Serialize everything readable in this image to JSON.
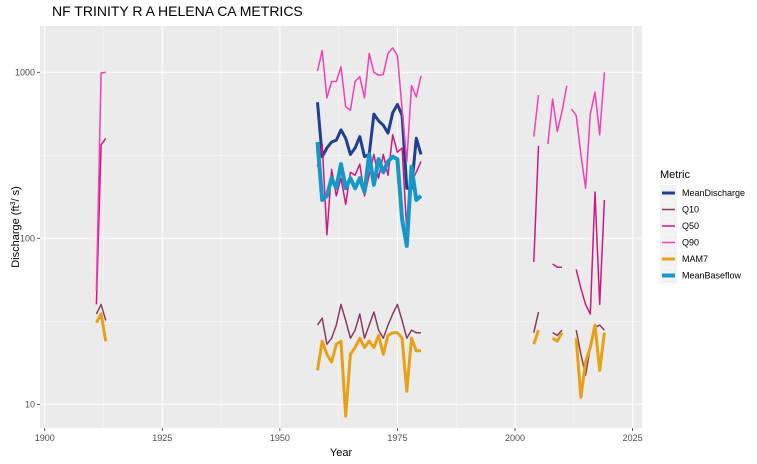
{
  "chart_data": {
    "type": "line",
    "title": "NF TRINITY R A HELENA CA  METRICS",
    "xlabel": "Year",
    "ylabel": "Discharge (ft",
    "ylabel_superscript": "3",
    "ylabel_suffix": "/ s)",
    "xlim": [
      1899,
      2027
    ],
    "ylim": [
      7.2,
      1900
    ],
    "y_scale": "log",
    "x_ticks": [
      1900,
      1925,
      1950,
      1975,
      2000,
      2025
    ],
    "x_minor_ticks": [
      1912.5,
      1937.5,
      1962.5,
      1987.5,
      2012.5
    ],
    "y_ticks": [
      10,
      100,
      1000
    ],
    "grid": true,
    "legend_title": "Metric",
    "legend_position": "right",
    "series": [
      {
        "name": "MeanDischarge",
        "color": "#1f3f8f",
        "width": 3,
        "segments": [
          {
            "x": [
              1958,
              1959,
              1960,
              1961,
              1962,
              1963,
              1964,
              1965,
              1966,
              1967,
              1968,
              1969,
              1970,
              1971,
              1972,
              1973,
              1974,
              1975,
              1976,
              1977,
              1978,
              1979,
              1980
            ],
            "y": [
              660,
              310,
              350,
              380,
              390,
              450,
              400,
              320,
              350,
              410,
              310,
              320,
              560,
              510,
              480,
              430,
              570,
              640,
              550,
              200,
              200,
              400,
              320
            ]
          }
        ]
      },
      {
        "name": "Q10",
        "color": "#8b3a62",
        "width": 1.5,
        "segments": [
          {
            "x": [
              1911,
              1912,
              1913
            ],
            "y": [
              35,
              40,
              32
            ]
          },
          {
            "x": [
              1958,
              1959,
              1960,
              1961,
              1962,
              1963,
              1964,
              1965,
              1966,
              1967,
              1968,
              1969,
              1970,
              1971,
              1972,
              1973,
              1974,
              1975,
              1976,
              1977,
              1978,
              1979,
              1980
            ],
            "y": [
              30,
              33,
              23,
              25,
              30,
              40,
              32,
              25,
              28,
              35,
              25,
              30,
              36,
              28,
              25,
              30,
              35,
              40,
              32,
              25,
              28,
              27,
              27
            ]
          },
          {
            "x": [
              2004,
              2005
            ],
            "y": [
              27,
              36
            ]
          },
          {
            "x": [
              2008,
              2009,
              2010
            ],
            "y": [
              27,
              26,
              28
            ]
          },
          {
            "x": [
              2013,
              2014,
              2015,
              2016,
              2017,
              2018,
              2019
            ],
            "y": [
              28,
              20,
              15,
              22,
              29,
              30,
              28
            ]
          }
        ]
      },
      {
        "name": "Q50",
        "color": "#c81a83",
        "width": 1.5,
        "segments": [
          {
            "x": [
              1911,
              1912,
              1913
            ],
            "y": [
              40,
              365,
              400
            ]
          },
          {
            "x": [
              1958,
              1959,
              1960,
              1961,
              1962,
              1963,
              1964,
              1965,
              1966,
              1967,
              1968,
              1969,
              1970,
              1971,
              1972,
              1973,
              1974,
              1975,
              1976,
              1977,
              1978,
              1979,
              1980
            ],
            "y": [
              270,
              370,
              105,
              260,
              180,
              230,
              160,
              250,
              240,
              280,
              180,
              240,
              320,
              230,
              320,
              240,
              420,
              330,
              350,
              110,
              220,
              250,
              290
            ]
          },
          {
            "x": [
              2004,
              2005
            ],
            "y": [
              72,
              360
            ]
          },
          {
            "x": [
              2008,
              2009,
              2010
            ],
            "y": [
              70,
              67,
              67
            ]
          },
          {
            "x": [
              2013,
              2014,
              2015,
              2016,
              2017,
              2018,
              2019
            ],
            "y": [
              65,
              50,
              40,
              35,
              190,
              40,
              170
            ]
          }
        ]
      },
      {
        "name": "Q90",
        "color": "#f03fb7",
        "width": 1.5,
        "segments": [
          {
            "x": [
              1911,
              1912,
              1913
            ],
            "y": [
              48,
              990,
              1000
            ]
          },
          {
            "x": [
              1958,
              1959,
              1960,
              1961,
              1962,
              1963,
              1964,
              1965,
              1966,
              1967,
              1968,
              1969,
              1970,
              1971,
              1972,
              1973,
              1974,
              1975,
              1976,
              1977,
              1978,
              1979,
              1980
            ],
            "y": [
              1020,
              1350,
              700,
              880,
              880,
              1080,
              620,
              590,
              880,
              940,
              700,
              1300,
              1000,
              960,
              970,
              1300,
              1400,
              1260,
              600,
              290,
              830,
              710,
              950
            ]
          },
          {
            "x": [
              2004,
              2005
            ],
            "y": [
              410,
              730
            ]
          },
          {
            "x": [
              2007,
              2008,
              2009,
              2010,
              2011
            ],
            "y": [
              370,
              690,
              440,
              580,
              830
            ]
          },
          {
            "x": [
              2012,
              2013,
              2014,
              2015,
              2016,
              2017,
              2018,
              2019
            ],
            "y": [
              600,
              550,
              320,
              200,
              560,
              760,
              420,
              1000
            ]
          }
        ]
      },
      {
        "name": "MAM7",
        "color": "#e6a117",
        "width": 3,
        "segments": [
          {
            "x": [
              1911,
              1912,
              1913
            ],
            "y": [
              31,
              35,
              24
            ]
          },
          {
            "x": [
              1958,
              1959,
              1960,
              1961,
              1962,
              1963,
              1964,
              1965,
              1966,
              1967,
              1968,
              1969,
              1970,
              1971,
              1972,
              1973,
              1974,
              1975,
              1976,
              1977,
              1978,
              1979,
              1980
            ],
            "y": [
              16,
              24,
              20,
              18,
              23,
              24,
              8.5,
              20,
              22,
              25,
              22,
              24,
              22,
              26,
              20,
              26,
              27,
              27,
              25,
              12,
              25,
              21,
              21
            ]
          },
          {
            "x": [
              2004,
              2005
            ],
            "y": [
              23,
              28
            ]
          },
          {
            "x": [
              2008,
              2009,
              2010
            ],
            "y": [
              25,
              24,
              27
            ]
          },
          {
            "x": [
              2013,
              2014,
              2015,
              2016,
              2017,
              2018,
              2019
            ],
            "y": [
              25,
              11,
              18,
              22,
              30,
              16,
              27
            ]
          }
        ]
      },
      {
        "name": "MeanBaseflow",
        "color": "#1598c8",
        "width": 4,
        "segments": [
          {
            "x": [
              1958,
              1959,
              1960,
              1961,
              1962,
              1963,
              1964,
              1965,
              1966,
              1967,
              1968,
              1969,
              1970,
              1971,
              1972,
              1973,
              1974,
              1975,
              1976,
              1977,
              1978,
              1979,
              1980
            ],
            "y": [
              380,
              170,
              180,
              230,
              200,
              280,
              200,
              230,
              200,
              230,
              190,
              320,
              210,
              300,
              250,
              290,
              310,
              300,
              130,
              90,
              270,
              170,
              180
            ]
          }
        ]
      }
    ]
  }
}
